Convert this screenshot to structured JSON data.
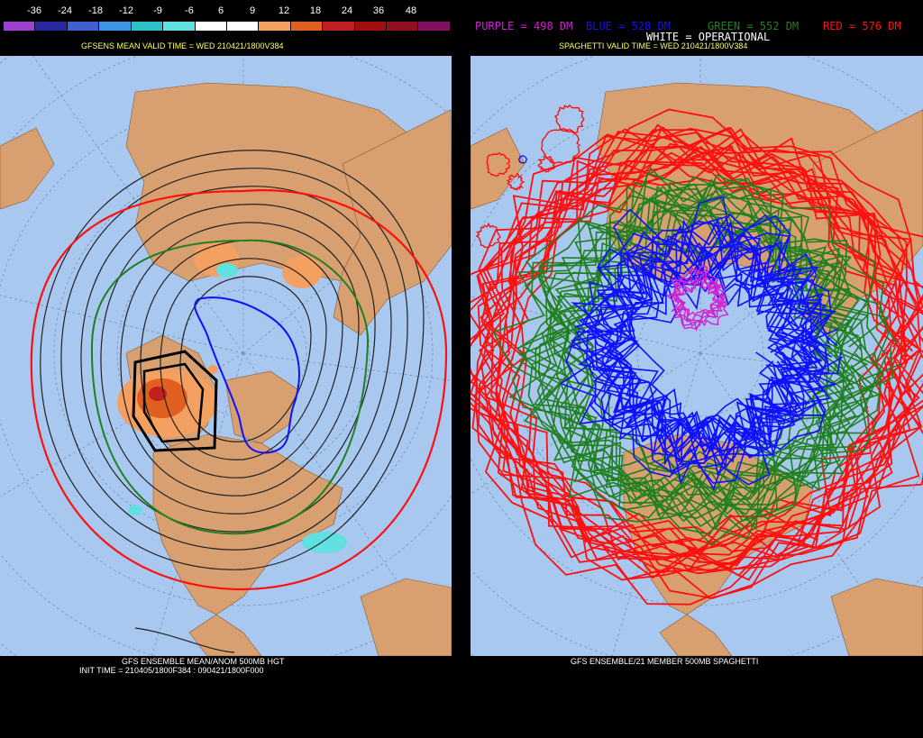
{
  "colorbar": {
    "labels": [
      "-36",
      "-24",
      "-18",
      "-12",
      "-9",
      "-6",
      "6",
      "9",
      "12",
      "18",
      "24",
      "36",
      "48"
    ],
    "colors": [
      "#a040d0",
      "#2828a0",
      "#4060d0",
      "#3c96e6",
      "#30c0c8",
      "#60e0e0",
      "#ffffff",
      "#ffffff",
      "#f4a060",
      "#e06020",
      "#c02020",
      "#a01010",
      "#901020",
      "#801060"
    ]
  },
  "left": {
    "valid_time": "GFSENS MEAN VALID TIME = WED 210421/1800V384",
    "footer_title": "GFS ENSEMBLE MEAN/ANOM 500MB HGT",
    "footer_init": "INIT TIME = 210405/1800F384 : 090421/1800F000"
  },
  "right": {
    "legend": {
      "purple": "PURPLE = 498 DM",
      "blue": "BLUE = 528 DM",
      "green": "GREEN = 552 DM",
      "red": "RED = 576 DM",
      "white": "WHITE = OPERATIONAL"
    },
    "valid_time": "SPAGHETTI VALID TIME = WED 210421/1800V384",
    "footer_title": "GFS ENSEMBLE/21 MEMBER 500MB SPAGHETTI"
  },
  "colors": {
    "ocean": "#a8c8f0",
    "land": "#d8a070",
    "purple": "#d020d0",
    "blue": "#1010ff",
    "green": "#208020",
    "red": "#ff1010"
  }
}
